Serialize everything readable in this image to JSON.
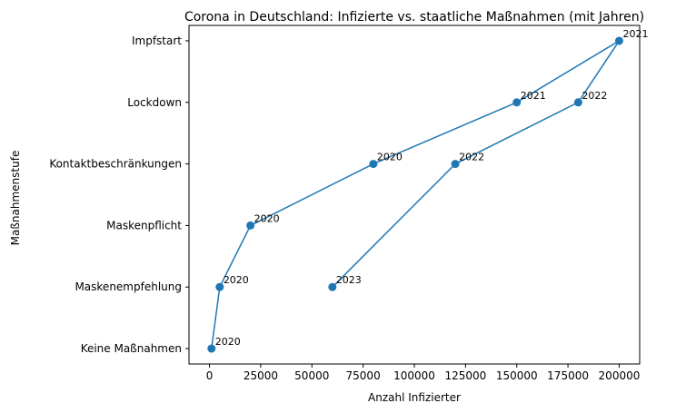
{
  "chart_data": {
    "type": "line",
    "title": "Corona in Deutschland: Infizierte vs. staatliche Maßnahmen (mit Jahren)",
    "xlabel": "Anzahl Infizierter",
    "ylabel": "Maßnahmenstufe",
    "xlim": [
      -10000,
      210000
    ],
    "ylim": [
      -0.25,
      5.25
    ],
    "xticks": [
      0,
      25000,
      50000,
      75000,
      100000,
      125000,
      150000,
      175000,
      200000
    ],
    "yticklabels": [
      "Keine Maßnahmen",
      "Maskenempfehlung",
      "Maskenpflicht",
      "Kontaktbeschränkungen",
      "Lockdown",
      "Impfstart"
    ],
    "color": "#1f77b4",
    "points": [
      {
        "x": 1000,
        "y": 0,
        "label": "2020"
      },
      {
        "x": 5000,
        "y": 1,
        "label": "2020"
      },
      {
        "x": 20000,
        "y": 2,
        "label": "2020"
      },
      {
        "x": 80000,
        "y": 3,
        "label": "2020"
      },
      {
        "x": 150000,
        "y": 4,
        "label": "2021"
      },
      {
        "x": 200000,
        "y": 5,
        "label": "2021"
      },
      {
        "x": 180000,
        "y": 4,
        "label": "2022"
      },
      {
        "x": 120000,
        "y": 3,
        "label": "2022"
      },
      {
        "x": 60000,
        "y": 1,
        "label": "2023"
      }
    ]
  }
}
